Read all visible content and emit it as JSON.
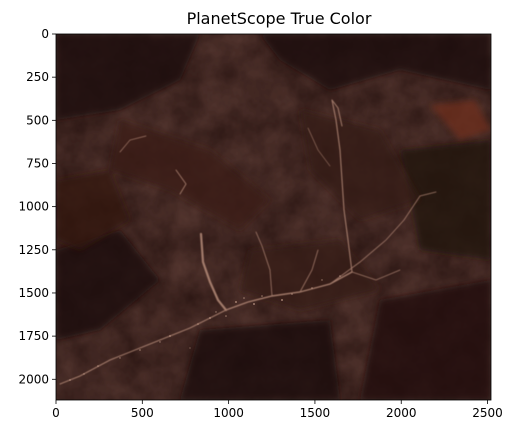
{
  "chart_data": {
    "type": "image",
    "title": "PlanetScope True Color",
    "xlabel": "",
    "ylabel": "",
    "xlim": [
      0,
      2520
    ],
    "ylim": [
      2120,
      0
    ],
    "x_ticks": [
      0,
      500,
      1000,
      1500,
      2000,
      2500
    ],
    "y_ticks": [
      0,
      250,
      500,
      750,
      1000,
      1250,
      1500,
      1750,
      2000
    ],
    "image_content": {
      "description_colors": {
        "base": "#2a1512",
        "dark": "#1e0f0d",
        "ridge": "#3a1d17",
        "river": "#c8a18e",
        "bright_patch": "#6e2f1c"
      }
    }
  }
}
